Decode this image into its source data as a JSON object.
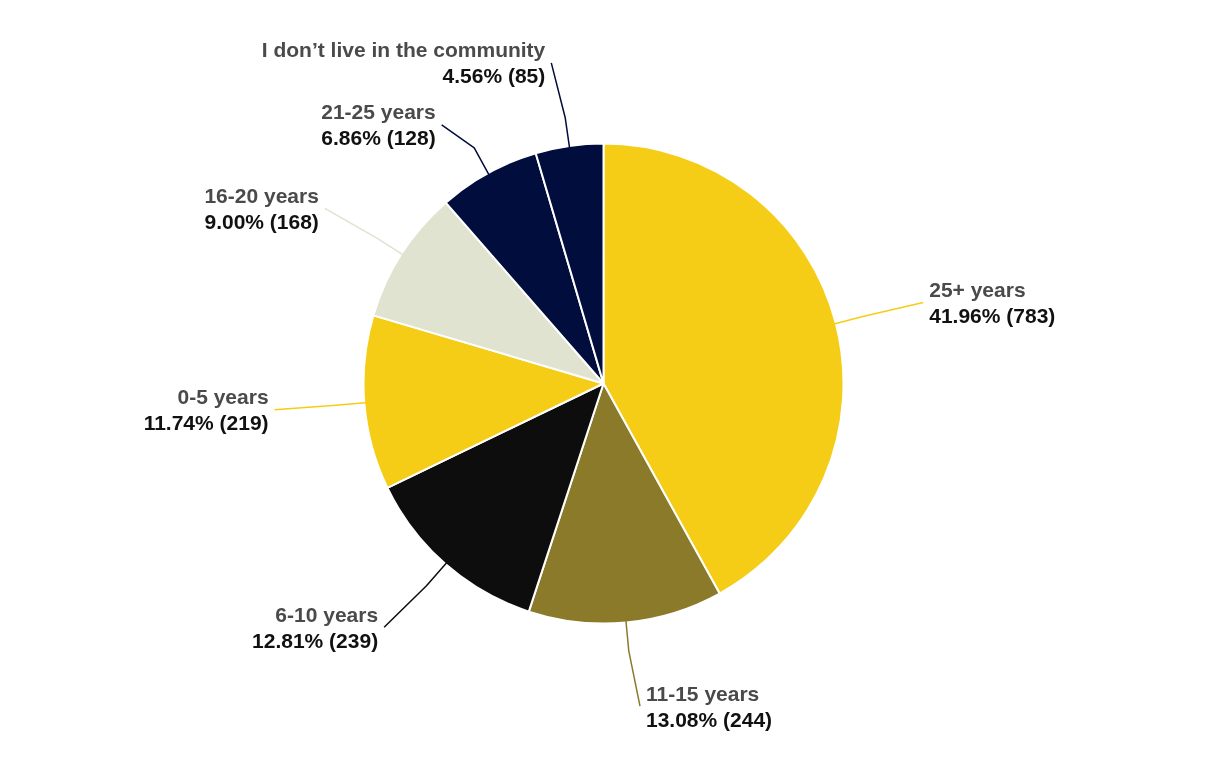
{
  "chart_data": {
    "type": "pie",
    "categories": [
      "25+ years",
      "11-15 years",
      "6-10 years",
      "0-5 years",
      "16-20 years",
      "21-25 years",
      "I don’t live in the community"
    ],
    "values": [
      783,
      244,
      239,
      219,
      168,
      128,
      85
    ],
    "value_labels": [
      "41.96% (783)",
      "13.08% (244)",
      "12.81% (239)",
      "11.74% (219)",
      "9.00% (168)",
      "6.86% (128)",
      "4.56% (85)"
    ],
    "colors": [
      "#f5cd17",
      "#8b7a2a",
      "#0d0d0d",
      "#f5cd17",
      "#dfe3d0",
      "#000d3d",
      "#000d3d"
    ]
  }
}
